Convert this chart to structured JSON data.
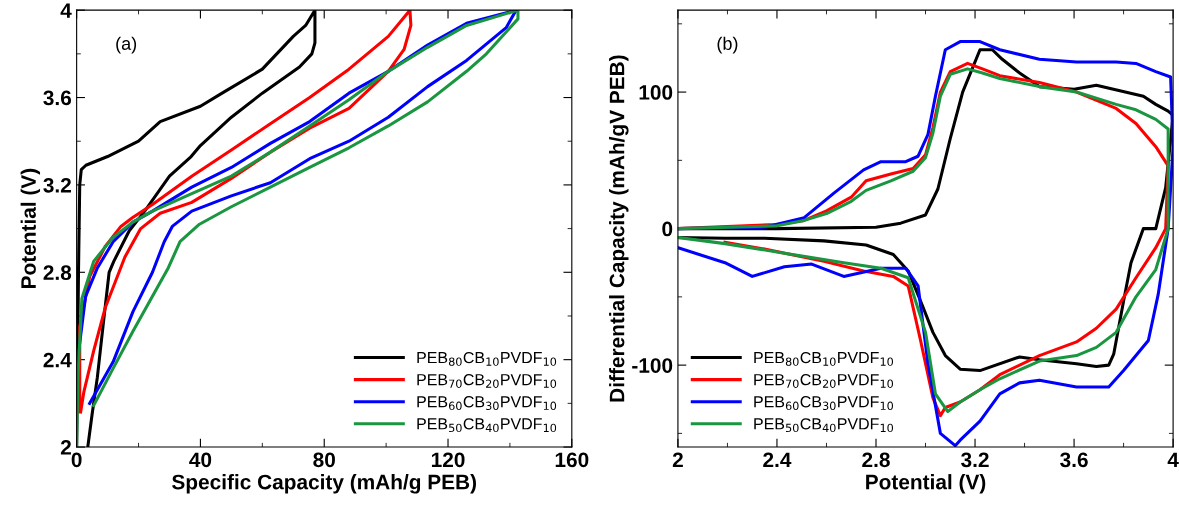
{
  "chart_data": [
    {
      "type": "line",
      "xlabel": "Specific Capacity (mAh/g PEB)",
      "ylabel": "Potential (V)",
      "annotations": [
        "(a)"
      ],
      "xlim": [
        0,
        160
      ],
      "xticks": [
        0,
        40,
        80,
        120,
        160
      ],
      "ylim": [
        2,
        4
      ],
      "yticks": [
        2,
        2.4,
        2.8,
        3.2,
        3.6,
        4
      ],
      "grid": false,
      "legend": "bottom right",
      "marker": "none",
      "line_style": "solid",
      "series": [
        {
          "name": "PEB$_{80}$CB$_{10}$PVDF$_{10}$",
          "color": "#000000",
          "x": [
            0,
            0.3,
            0.6,
            1,
            1.5,
            3,
            10,
            20,
            27,
            40,
            47,
            60,
            70,
            74,
            77,
            77,
            76,
            72,
            60,
            50,
            40,
            37,
            30,
            22,
            17,
            12,
            10.5,
            8.5,
            6.7,
            5,
            3.6
          ],
          "values": [
            2.0,
            2.4,
            2.8,
            3.2,
            3.27,
            3.29,
            3.33,
            3.4,
            3.49,
            3.56,
            3.62,
            3.73,
            3.88,
            3.93,
            4.0,
            3.85,
            3.8,
            3.74,
            3.62,
            3.51,
            3.38,
            3.33,
            3.24,
            3.08,
            2.99,
            2.85,
            2.8,
            2.55,
            2.32,
            2.15,
            2.0
          ]
        },
        {
          "name": "PEB$_{70}$CB$_{20}$PVDF$_{10}$",
          "color": "#ff0000",
          "x": [
            1,
            1,
            4.2,
            9.3,
            14.3,
            18,
            24.5,
            37.2,
            50,
            62.6,
            75.3,
            88,
            100.7,
            107.7,
            108,
            105.8,
            100.7,
            88,
            75.3,
            62.6,
            50,
            37.2,
            27,
            20.7,
            15.6,
            9.3,
            5.5,
            2.3,
            1.3
          ],
          "values": [
            2.16,
            2.55,
            2.78,
            2.92,
            3.01,
            3.05,
            3.11,
            3.24,
            3.36,
            3.48,
            3.6,
            3.73,
            3.88,
            4.0,
            3.93,
            3.82,
            3.72,
            3.55,
            3.46,
            3.35,
            3.23,
            3.12,
            3.07,
            3.0,
            2.87,
            2.64,
            2.44,
            2.25,
            2.16
          ]
        },
        {
          "name": "PEB$_{60}$CB$_{30}$PVDF$_{10}$",
          "color": "#0000ff",
          "x": [
            0.4,
            2.9,
            6.7,
            11.8,
            18.2,
            24.5,
            37.2,
            50,
            62.6,
            75.3,
            88,
            100.7,
            113.4,
            126,
            142,
            138.8,
            126,
            113.4,
            100.7,
            88,
            75.3,
            62.6,
            50,
            37.2,
            30.9,
            28.3,
            24.5,
            18.2,
            11.8,
            4.2
          ],
          "values": [
            2.41,
            2.69,
            2.82,
            2.94,
            3.03,
            3.08,
            3.19,
            3.28,
            3.39,
            3.49,
            3.62,
            3.72,
            3.84,
            3.94,
            4.0,
            3.92,
            3.77,
            3.65,
            3.51,
            3.4,
            3.32,
            3.21,
            3.15,
            3.08,
            3.01,
            2.94,
            2.8,
            2.62,
            2.39,
            2.2
          ]
        },
        {
          "name": "PEB$_{50}$CB$_{40}$PVDF$_{10}$",
          "color": "#1a9641",
          "x": [
            0,
            0.4,
            1.7,
            5.5,
            11.8,
            18.2,
            24.5,
            37.2,
            50,
            62.6,
            75.3,
            88,
            100.7,
            113.4,
            126,
            142.6,
            142.6,
            132.4,
            126,
            113.4,
            100.7,
            88,
            75.3,
            62.6,
            50,
            39.7,
            33.4,
            29.6,
            24.5,
            18.2,
            11.8,
            5.5
          ],
          "values": [
            2.0,
            2.32,
            2.68,
            2.85,
            2.96,
            3.03,
            3.08,
            3.16,
            3.24,
            3.35,
            3.47,
            3.59,
            3.72,
            3.83,
            3.93,
            4.0,
            3.96,
            3.8,
            3.72,
            3.58,
            3.47,
            3.37,
            3.28,
            3.19,
            3.1,
            3.02,
            2.94,
            2.82,
            2.69,
            2.53,
            2.36,
            2.19
          ]
        }
      ]
    },
    {
      "type": "line",
      "xlabel": "Potential (V)",
      "ylabel": "Differential Capacity (mAh/gV PEB)",
      "annotations": [
        "(b)"
      ],
      "xlim": [
        2,
        4
      ],
      "xticks": [
        2,
        2.4,
        2.8,
        3.2,
        3.6,
        4
      ],
      "ylim": [
        -160,
        160
      ],
      "yticks": [
        -100,
        0,
        100
      ],
      "grid": false,
      "legend": "bottom left",
      "marker": "none",
      "line_style": "solid",
      "series": [
        {
          "name": "PEB$_{80}$CB$_{10}$PVDF$_{10}$",
          "color": "#000000",
          "x": [
            2.0,
            2.4,
            2.8,
            2.9,
            3.0,
            3.05,
            3.1,
            3.15,
            3.22,
            3.27,
            3.31,
            3.38,
            3.46,
            3.6,
            3.69,
            3.88,
            3.93,
            3.98,
            4.0,
            3.97,
            3.93,
            3.88,
            3.83,
            3.8,
            3.76,
            3.74,
            3.69,
            3.61,
            3.46,
            3.38,
            3.22,
            3.14,
            3.08,
            3.03,
            2.98,
            2.93,
            2.87,
            2.76,
            2.59,
            2.35,
            2.19,
            2.0
          ],
          "values": [
            0,
            0,
            1,
            4,
            10,
            29,
            66,
            100,
            131,
            131,
            124,
            114,
            104,
            102,
            105,
            97,
            91,
            86,
            83,
            30,
            0,
            0,
            -25,
            -53,
            -92,
            -100,
            -101,
            -99,
            -96,
            -94,
            -104,
            -103,
            -93,
            -76,
            -53,
            -31,
            -19,
            -12,
            -9,
            -7,
            -7,
            -6.5
          ]
        },
        {
          "name": "PEB$_{70}$CB$_{20}$PVDF$_{10}$",
          "color": "#ff0000",
          "x": [
            2.0,
            2.4,
            2.51,
            2.6,
            2.7,
            2.76,
            2.86,
            2.95,
            3.0,
            3.03,
            3.06,
            3.1,
            3.17,
            3.23,
            3.3,
            3.46,
            3.61,
            3.77,
            3.85,
            3.93,
            3.98,
            3.97,
            3.93,
            3.85,
            3.77,
            3.69,
            3.61,
            3.46,
            3.3,
            3.22,
            3.14,
            3.08,
            3.06,
            3.03,
            2.98,
            2.93,
            2.87,
            2.75,
            2.59,
            2.35,
            2.19
          ],
          "values": [
            0,
            3,
            6,
            13,
            23,
            35,
            40,
            44,
            54,
            74,
            100,
            115,
            121,
            117,
            112,
            107,
            100,
            88,
            77,
            60,
            46,
            0,
            -14,
            -36,
            -59,
            -73,
            -83,
            -93,
            -107,
            -118,
            -127,
            -131,
            -137,
            -124,
            -82,
            -42,
            -35,
            -31,
            -24,
            -15,
            -10
          ]
        },
        {
          "name": "PEB$_{60}$CB$_{30}$PVDF$_{10}$",
          "color": "#0000ff",
          "x": [
            2.0,
            2.35,
            2.51,
            2.63,
            2.75,
            2.82,
            2.92,
            2.97,
            3.01,
            3.04,
            3.08,
            3.14,
            3.22,
            3.3,
            3.46,
            3.61,
            3.77,
            3.85,
            3.93,
            3.99,
            4.0,
            3.98,
            3.94,
            3.9,
            3.8,
            3.74,
            3.61,
            3.46,
            3.38,
            3.3,
            3.22,
            3.14,
            3.12,
            3.06,
            3.01,
            2.97,
            2.92,
            2.82,
            2.67,
            2.54,
            2.43,
            2.3,
            2.19,
            2.0
          ],
          "values": [
            0,
            1,
            8,
            26,
            43,
            49,
            49,
            53,
            69,
            97,
            131,
            137,
            137,
            131,
            124,
            122,
            122,
            121,
            115,
            111,
            60,
            0,
            -48,
            -82,
            -104,
            -116,
            -116,
            -111,
            -113,
            -121,
            -141,
            -155,
            -159,
            -150,
            -99,
            -42,
            -29,
            -29,
            -35,
            -26,
            -28,
            -35,
            -25,
            -14
          ]
        },
        {
          "name": "PEB$_{50}$CB$_{40}$PVDF$_{10}$",
          "color": "#1a9641",
          "x": [
            2.0,
            2.4,
            2.51,
            2.6,
            2.7,
            2.76,
            2.86,
            2.95,
            3.0,
            3.03,
            3.06,
            3.1,
            3.17,
            3.23,
            3.3,
            3.46,
            3.61,
            3.77,
            3.85,
            3.93,
            3.98,
            3.98,
            3.93,
            3.85,
            3.77,
            3.69,
            3.61,
            3.46,
            3.3,
            3.22,
            3.14,
            3.09,
            3.04,
            3.0,
            2.93,
            2.82,
            2.67,
            2.43,
            2.19,
            2.0
          ],
          "values": [
            0,
            2,
            6,
            11,
            20,
            28,
            35,
            42,
            52,
            70,
            97,
            113,
            117,
            114,
            110,
            104,
            100,
            91,
            87,
            80,
            73,
            0,
            -30,
            -50,
            -76,
            -87,
            -93,
            -97,
            -110,
            -118,
            -127,
            -134,
            -121,
            -76,
            -36,
            -29,
            -25,
            -18,
            -11,
            -6.5
          ]
        }
      ]
    }
  ]
}
